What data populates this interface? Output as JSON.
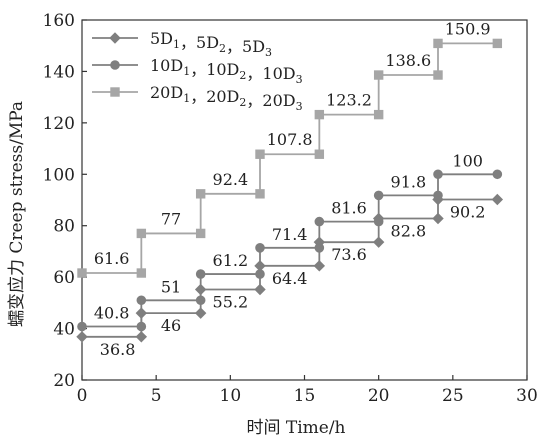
{
  "chart_data": {
    "type": "line",
    "step": true,
    "xlabel": "时间 Time/h",
    "ylabel": "蠕变应力 Creep stress/MPa",
    "xlim": [
      0,
      30
    ],
    "ylim": [
      20,
      160
    ],
    "xticks": [
      "0",
      "5",
      "10",
      "15",
      "20",
      "25",
      "30"
    ],
    "yticks": [
      "20",
      "40",
      "60",
      "80",
      "100",
      "120",
      "140",
      "160"
    ],
    "grid": false,
    "legend_position": "top-left",
    "series": [
      {
        "name": "5D1，5D2，5D3",
        "legend_parts": [
          [
            "5D",
            "1"
          ],
          [
            "，5D",
            "2"
          ],
          [
            "，5D",
            "3"
          ]
        ],
        "marker": "diamond",
        "color": "#7f7f7f",
        "x": [
          0,
          4,
          4,
          8,
          8,
          12,
          12,
          16,
          16,
          20,
          20,
          24,
          24,
          28
        ],
        "y": [
          36.8,
          36.8,
          46,
          46,
          55.2,
          55.2,
          64.4,
          64.4,
          73.6,
          73.6,
          82.8,
          82.8,
          90.2,
          90.2
        ],
        "labels": [
          "36.8",
          "46",
          "55.2",
          "64.4",
          "73.6",
          "82.8",
          "90.2"
        ]
      },
      {
        "name": "10D1，10D2，10D3",
        "legend_parts": [
          [
            "10D",
            "1"
          ],
          [
            "，10D",
            "2"
          ],
          [
            "，10D",
            "3"
          ]
        ],
        "marker": "circle",
        "color": "#7f7f7f",
        "x": [
          0,
          4,
          4,
          8,
          8,
          12,
          12,
          16,
          16,
          20,
          20,
          24,
          24,
          28
        ],
        "y": [
          40.8,
          40.8,
          51,
          51,
          61.2,
          61.2,
          71.4,
          71.4,
          81.6,
          81.6,
          91.8,
          91.8,
          100,
          100
        ],
        "labels": [
          "40.8",
          "51",
          "61.2",
          "71.4",
          "81.6",
          "91.8",
          "100"
        ]
      },
      {
        "name": "20D1，20D2，20D3",
        "legend_parts": [
          [
            "20D",
            "1"
          ],
          [
            "，20D",
            "2"
          ],
          [
            "，20D",
            "3"
          ]
        ],
        "marker": "square",
        "color": "#a6a6a6",
        "x": [
          0,
          4,
          4,
          8,
          8,
          12,
          12,
          16,
          16,
          20,
          20,
          24,
          24,
          28
        ],
        "y": [
          61.6,
          61.6,
          77,
          77,
          92.4,
          92.4,
          107.8,
          107.8,
          123.2,
          123.2,
          138.6,
          138.6,
          150.9,
          150.9
        ],
        "labels": [
          "61.6",
          "77",
          "92.4",
          "107.8",
          "123.2",
          "138.6",
          "150.9"
        ]
      }
    ]
  }
}
